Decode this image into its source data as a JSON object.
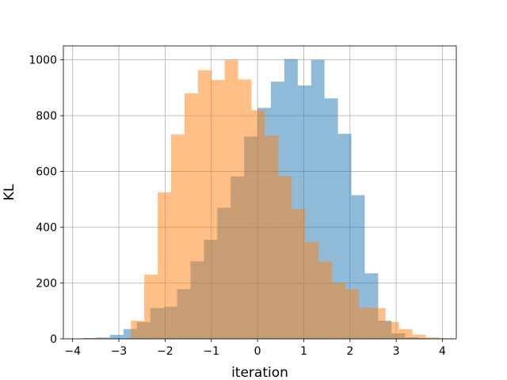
{
  "chart_data": {
    "type": "bar",
    "title": "",
    "xlabel": "iteration",
    "ylabel": "KL",
    "xlim": [
      -4.2,
      4.3
    ],
    "ylim": [
      0,
      1050
    ],
    "xticks": [
      -4,
      -3,
      -2,
      -1,
      0,
      1,
      2,
      3,
      4
    ],
    "yticks": [
      0,
      200,
      400,
      600,
      800,
      1000
    ],
    "grid": true,
    "legend": "none",
    "series": [
      {
        "color": "#1f77b4",
        "opacity": 0.5,
        "bin_width": 0.29,
        "bins": [
          {
            "x": -3.77,
            "value": 3
          },
          {
            "x": -3.48,
            "value": 5
          },
          {
            "x": -3.19,
            "value": 14
          },
          {
            "x": -2.9,
            "value": 35
          },
          {
            "x": -2.61,
            "value": 60
          },
          {
            "x": -2.32,
            "value": 110
          },
          {
            "x": -2.03,
            "value": 115
          },
          {
            "x": -1.74,
            "value": 178
          },
          {
            "x": -1.45,
            "value": 278
          },
          {
            "x": -1.16,
            "value": 355
          },
          {
            "x": -0.87,
            "value": 470
          },
          {
            "x": -0.58,
            "value": 582
          },
          {
            "x": -0.29,
            "value": 725
          },
          {
            "x": 0.0,
            "value": 828
          },
          {
            "x": 0.29,
            "value": 922
          },
          {
            "x": 0.58,
            "value": 1003
          },
          {
            "x": 0.87,
            "value": 908
          },
          {
            "x": 1.16,
            "value": 1000
          },
          {
            "x": 1.45,
            "value": 862
          },
          {
            "x": 1.74,
            "value": 735
          },
          {
            "x": 2.03,
            "value": 515
          },
          {
            "x": 2.32,
            "value": 235
          },
          {
            "x": 2.61,
            "value": 65
          },
          {
            "x": 2.9,
            "value": 20
          },
          {
            "x": 3.19,
            "value": 5
          },
          {
            "x": 3.48,
            "value": 2
          }
        ]
      },
      {
        "color": "#ff7f0e",
        "opacity": 0.5,
        "bin_width": 0.29,
        "bins": [
          {
            "x": -2.74,
            "value": 65
          },
          {
            "x": -2.45,
            "value": 230
          },
          {
            "x": -2.16,
            "value": 525
          },
          {
            "x": -1.87,
            "value": 733
          },
          {
            "x": -1.58,
            "value": 880
          },
          {
            "x": -1.29,
            "value": 963
          },
          {
            "x": -1.0,
            "value": 928
          },
          {
            "x": -0.71,
            "value": 1000
          },
          {
            "x": -0.42,
            "value": 930
          },
          {
            "x": -0.13,
            "value": 820
          },
          {
            "x": 0.16,
            "value": 728
          },
          {
            "x": 0.45,
            "value": 582
          },
          {
            "x": 0.74,
            "value": 465
          },
          {
            "x": 1.03,
            "value": 347
          },
          {
            "x": 1.32,
            "value": 277
          },
          {
            "x": 1.61,
            "value": 200
          },
          {
            "x": 1.9,
            "value": 178
          },
          {
            "x": 2.19,
            "value": 112
          },
          {
            "x": 2.48,
            "value": 110
          },
          {
            "x": 2.77,
            "value": 60
          },
          {
            "x": 3.06,
            "value": 35
          },
          {
            "x": 3.35,
            "value": 15
          },
          {
            "x": 3.64,
            "value": 5
          },
          {
            "x": 3.93,
            "value": 2
          }
        ]
      }
    ]
  }
}
